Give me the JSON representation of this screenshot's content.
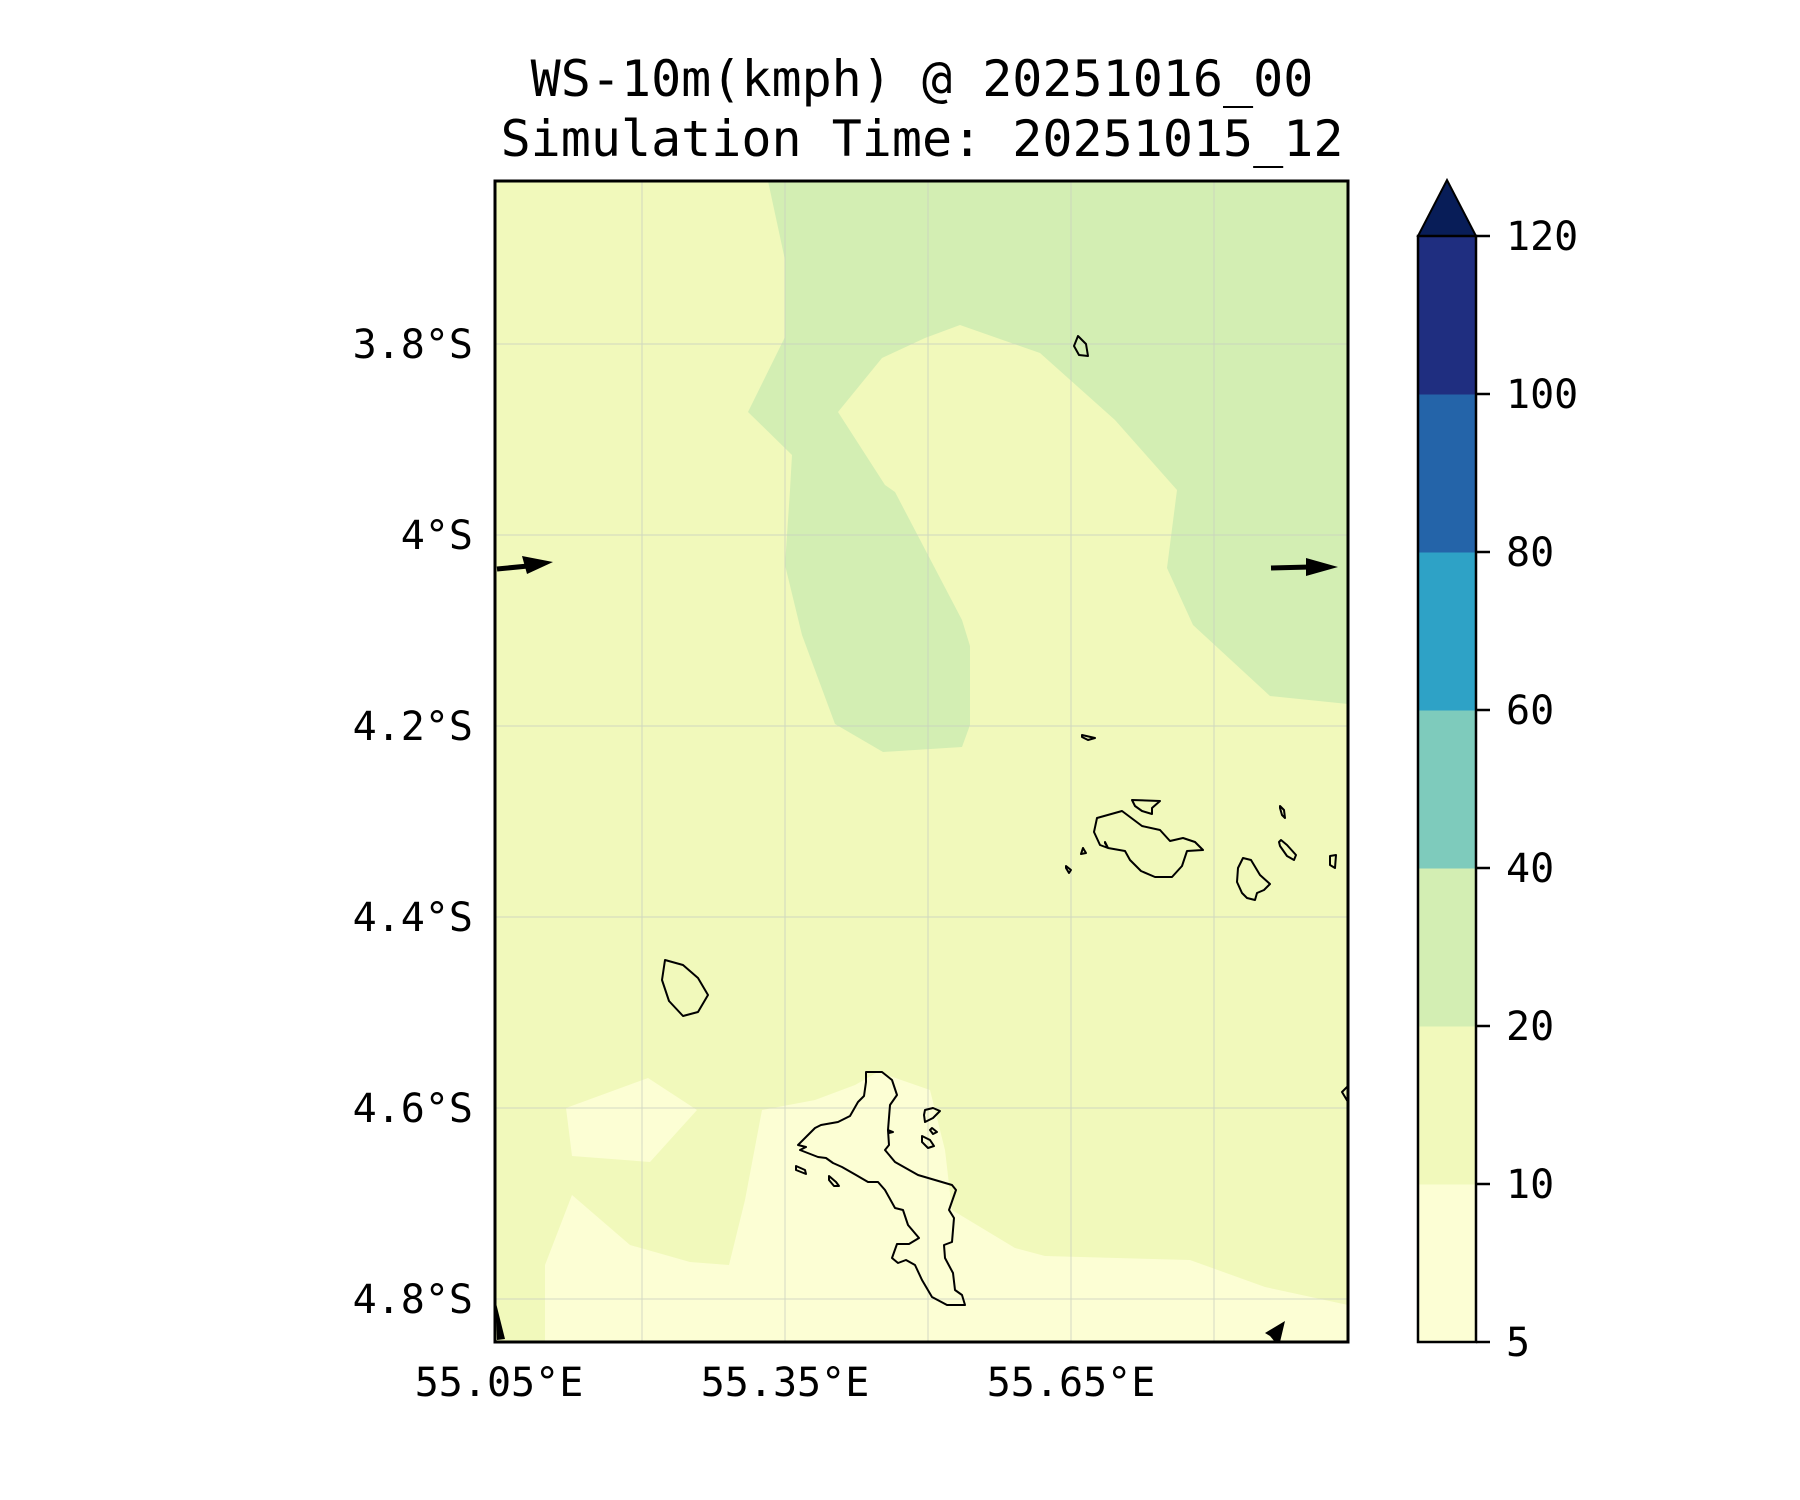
{
  "title": {
    "line1": "WS-10m(kmph) @ 20251016_00",
    "line2": "Simulation Time: 20251015_12"
  },
  "map": {
    "lon_ticks": [
      "55.05°E",
      "55.35°E",
      "55.65°E"
    ],
    "lat_ticks": [
      "3.8°S",
      "4°S",
      "4.2°S",
      "4.4°S",
      "4.6°S",
      "4.8°S"
    ],
    "lon_range": [
      55.05,
      55.95
    ],
    "lat_range": [
      -3.63,
      -4.85
    ]
  },
  "colorbar": {
    "tick_labels": [
      "5",
      "10",
      "20",
      "40",
      "60",
      "80",
      "100",
      "120"
    ],
    "extend": "max",
    "levels": [
      {
        "from": 5,
        "to": 10,
        "color": "#fcfed4"
      },
      {
        "from": 10,
        "to": 20,
        "color": "#f1f9bb"
      },
      {
        "from": 20,
        "to": 40,
        "color": "#d3eeb3"
      },
      {
        "from": 40,
        "to": 60,
        "color": "#7ecbbc"
      },
      {
        "from": 60,
        "to": 80,
        "color": "#2ea2c6"
      },
      {
        "from": 80,
        "to": 100,
        "color": "#2464a9"
      },
      {
        "from": 100,
        "to": 120,
        "color": "#1f2e80"
      }
    ],
    "over_color": "#081d58"
  },
  "chart_data": {
    "type": "heatmap",
    "variable": "WS-10m(kmph)",
    "valid_time": "20251016_00",
    "simulation_time": "20251015_12",
    "x_ticks": [
      "55.05°E",
      "55.35°E",
      "55.65°E"
    ],
    "y_ticks": [
      "3.8°S",
      "4°S",
      "4.2°S",
      "4.4°S",
      "4.6°S",
      "4.8°S"
    ],
    "dominant_level": "10-20 kmph",
    "secondary_level": "20-40 kmph in northeast band",
    "wind_vectors": "light westerly to easterly-flowing arrows at edges"
  }
}
